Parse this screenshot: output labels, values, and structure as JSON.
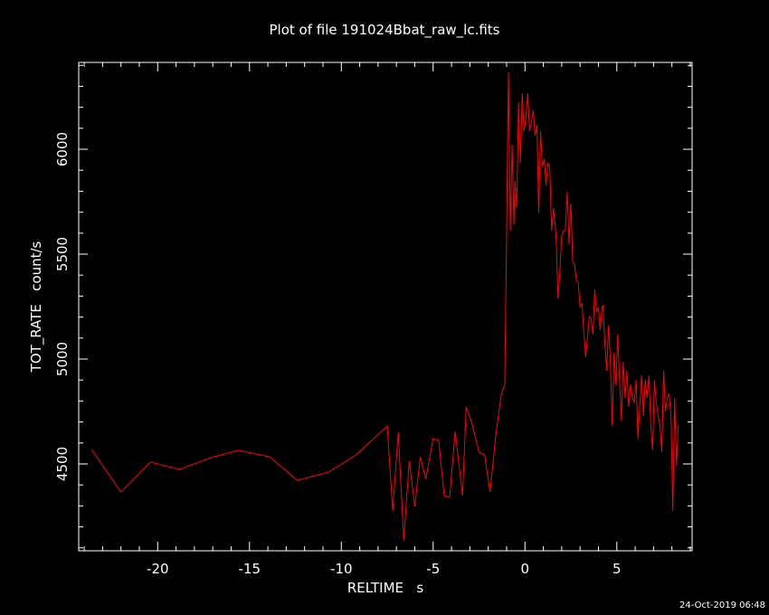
{
  "chart_data": {
    "type": "line",
    "title": "Plot of file 191024Bbat_raw_lc.fits",
    "x_label": "RELTIME   s",
    "y_label": "TOT_RATE   count/s",
    "timestamp": "24-Oct-2019 06:48",
    "color": "#ff0000",
    "xlim": [
      -24.3,
      9.1
    ],
    "ylim": [
      4086,
      6414
    ],
    "xticks": [
      -20,
      -15,
      -10,
      -5,
      0,
      5
    ],
    "yticks": [
      4500,
      5000,
      5500,
      6000
    ],
    "xminorticks": [
      -24,
      -23,
      -22,
      -21,
      -19,
      -18,
      -17,
      -16,
      -14,
      -13,
      -12,
      -11,
      -9,
      -8,
      -7,
      -6,
      -4,
      -3,
      -2,
      -1,
      1,
      2,
      3,
      4,
      6,
      7,
      8,
      9
    ],
    "yminorticks": [
      4100,
      4200,
      4300,
      4400,
      4600,
      4700,
      4800,
      4900,
      5100,
      5200,
      5300,
      5400,
      5600,
      5700,
      5800,
      5900,
      6100,
      6200,
      6300,
      6400
    ],
    "x": [
      -23.6,
      -22.0,
      -20.4,
      -18.8,
      -17.1,
      -15.6,
      -13.9,
      -12.4,
      -10.7,
      -9.2,
      -7.5,
      -7.2,
      -6.9,
      -6.6,
      -6.3,
      -6.0,
      -5.7,
      -5.4,
      -5.0,
      -4.7,
      -4.4,
      -4.1,
      -3.8,
      -3.4,
      -3.2,
      -2.9,
      -2.5,
      -2.2,
      -1.9,
      -1.6,
      -1.3,
      -1.1,
      -1.0,
      -0.9,
      -0.8,
      -0.7,
      -0.6,
      -0.55,
      -0.45,
      -0.35,
      -0.25,
      -0.15,
      -0.05,
      0.05,
      0.15,
      0.25,
      0.35,
      0.45,
      0.55,
      0.65,
      0.75,
      0.85,
      0.95,
      1.05,
      1.15,
      1.25,
      1.35,
      1.45,
      1.55,
      1.65,
      1.7,
      1.8,
      1.9,
      2.0,
      2.1,
      2.2,
      2.3,
      2.4,
      2.5,
      2.6,
      2.7,
      2.8,
      2.9,
      3.0,
      3.1,
      3.2,
      3.3,
      3.4,
      3.5,
      3.6,
      3.7,
      3.8,
      3.9,
      4.0,
      4.1,
      4.2,
      4.25,
      4.35,
      4.45,
      4.55,
      4.65,
      4.75,
      4.85,
      4.95,
      5.05,
      5.15,
      5.25,
      5.35,
      5.45,
      5.55,
      5.65,
      5.75,
      5.85,
      5.95,
      6.05,
      6.15,
      6.25,
      6.35,
      6.45,
      6.55,
      6.65,
      6.75,
      6.85,
      6.95,
      7.05,
      7.15,
      7.25,
      7.35,
      7.45,
      7.55,
      7.65,
      7.75,
      7.85,
      7.95,
      8.05,
      8.15,
      8.25,
      8.35
    ],
    "values": [
      4569,
      4366,
      4509,
      4474,
      4530,
      4565,
      4534,
      4422,
      4461,
      4543,
      4681,
      4276,
      4651,
      4138,
      4513,
      4297,
      4534,
      4427,
      4621,
      4612,
      4349,
      4341,
      4655,
      4349,
      4772,
      4698,
      4556,
      4543,
      4366,
      4629,
      4828,
      4879,
      5612,
      6367,
      5612,
      6022,
      5642,
      5849,
      5720,
      6224,
      5935,
      6267,
      6086,
      6151,
      6267,
      6086,
      6129,
      6185,
      6065,
      6116,
      5698,
      6086,
      5914,
      5957,
      5828,
      5935,
      5914,
      5612,
      5720,
      5634,
      5569,
      5289,
      5418,
      5591,
      5612,
      5612,
      5797,
      5547,
      5741,
      5461,
      5453,
      5375,
      5366,
      5246,
      5267,
      5138,
      5009,
      5095,
      5203,
      5194,
      5116,
      5332,
      5224,
      5246,
      5138,
      5246,
      5254,
      5073,
      4944,
      5159,
      4987,
      4685,
      5030,
      4879,
      5116,
      4901,
      4707,
      4987,
      4815,
      4944,
      4772,
      4879,
      4815,
      4793,
      4901,
      4621,
      4772,
      4922,
      4728,
      4901,
      4815,
      4922,
      4685,
      4565,
      4901,
      4793,
      4728,
      4685,
      4556,
      4944,
      4750,
      4815,
      4836,
      4728,
      4276,
      4815,
      4491,
      4685
    ]
  }
}
